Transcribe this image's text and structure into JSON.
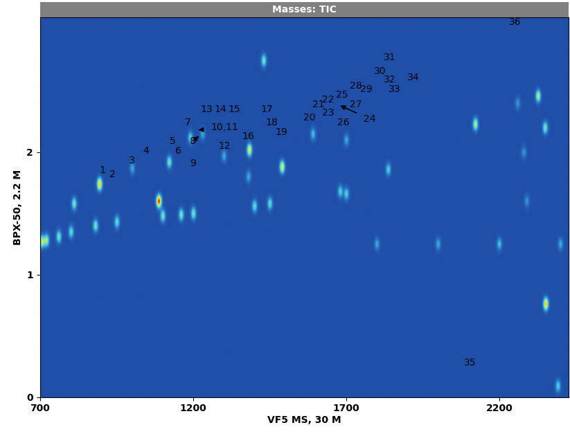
{
  "chart_data": {
    "type": "heatmap",
    "title": "Masses: TIC",
    "x_label": "VF5 MS, 30 M",
    "y_label": "BPX-50, 2.2 M",
    "xlim": [
      700,
      2425
    ],
    "ylim": [
      0,
      3.1
    ],
    "xticks": [
      700,
      1200,
      1700,
      2200
    ],
    "yticks": [
      0,
      1,
      2
    ],
    "grid": false,
    "peaks": {
      "x": [
        1087,
        893,
        1383,
        1490,
        1430,
        2122,
        2327,
        2350,
        2352,
        2392,
        1837,
        1680,
        1121,
        1000,
        810,
        1300,
        1190,
        1230,
        1380,
        1591,
        1700,
        2260,
        2280,
        2290,
        705,
        720,
        760,
        800,
        880,
        950,
        1100,
        1160,
        1200,
        1400,
        1450,
        1700,
        1800,
        2000,
        2200,
        2400
      ],
      "y": [
        1.6,
        1.74,
        2.02,
        1.88,
        2.75,
        2.23,
        2.46,
        2.2,
        0.76,
        0.09,
        1.86,
        1.68,
        1.92,
        1.87,
        1.58,
        1.97,
        2.12,
        2.15,
        1.8,
        2.15,
        2.1,
        2.4,
        2.0,
        1.6,
        1.27,
        1.28,
        1.31,
        1.35,
        1.4,
        1.43,
        1.48,
        1.49,
        1.5,
        1.56,
        1.58,
        1.66,
        1.25,
        1.25,
        1.25,
        1.25
      ],
      "intensity": [
        1.0,
        0.8,
        0.7,
        0.7,
        0.5,
        0.6,
        0.6,
        0.5,
        0.8,
        0.4,
        0.4,
        0.4,
        0.5,
        0.3,
        0.5,
        0.3,
        0.4,
        0.3,
        0.3,
        0.35,
        0.3,
        0.25,
        0.25,
        0.25,
        0.6,
        0.55,
        0.5,
        0.45,
        0.5,
        0.45,
        0.5,
        0.5,
        0.5,
        0.45,
        0.45,
        0.4,
        0.3,
        0.3,
        0.35,
        0.3
      ]
    },
    "annotations": [
      {
        "text": "1",
        "x": 904,
        "y": 1.85
      },
      {
        "text": "2",
        "x": 937,
        "y": 1.82
      },
      {
        "text": "3",
        "x": 1000,
        "y": 1.93
      },
      {
        "text": "4",
        "x": 1047,
        "y": 2.01
      },
      {
        "text": "5",
        "x": 1134,
        "y": 2.09
      },
      {
        "text": "6",
        "x": 1152,
        "y": 2.01
      },
      {
        "text": "7",
        "x": 1184,
        "y": 2.24
      },
      {
        "text": "8",
        "x": 1199,
        "y": 2.09,
        "arrow_to": [
          1219,
          2.13
        ]
      },
      {
        "text": "9",
        "x": 1199,
        "y": 1.91
      },
      {
        "text": "10,11",
        "x": 1304,
        "y": 2.2,
        "arrow_to": [
          1217,
          2.18
        ]
      },
      {
        "text": "12",
        "x": 1304,
        "y": 2.05
      },
      {
        "text": "13",
        "x": 1244,
        "y": 2.35
      },
      {
        "text": "14",
        "x": 1289,
        "y": 2.35
      },
      {
        "text": "15",
        "x": 1334,
        "y": 2.35
      },
      {
        "text": "16",
        "x": 1381,
        "y": 2.13
      },
      {
        "text": "17",
        "x": 1441,
        "y": 2.35
      },
      {
        "text": "18",
        "x": 1457,
        "y": 2.24
      },
      {
        "text": "19",
        "x": 1488,
        "y": 2.16
      },
      {
        "text": "20",
        "x": 1580,
        "y": 2.28
      },
      {
        "text": "21",
        "x": 1609,
        "y": 2.39
      },
      {
        "text": "22",
        "x": 1642,
        "y": 2.43
      },
      {
        "text": "23",
        "x": 1642,
        "y": 2.32
      },
      {
        "text": "24",
        "x": 1777,
        "y": 2.27,
        "arrow_to": [
          1680,
          2.38
        ]
      },
      {
        "text": "25",
        "x": 1687,
        "y": 2.47
      },
      {
        "text": "26",
        "x": 1690,
        "y": 2.24
      },
      {
        "text": "27",
        "x": 1732,
        "y": 2.39
      },
      {
        "text": "28",
        "x": 1732,
        "y": 2.54
      },
      {
        "text": "29",
        "x": 1766,
        "y": 2.51
      },
      {
        "text": "30",
        "x": 1810,
        "y": 2.66
      },
      {
        "text": "31",
        "x": 1842,
        "y": 2.77
      },
      {
        "text": "32",
        "x": 1842,
        "y": 2.59
      },
      {
        "text": "33",
        "x": 1857,
        "y": 2.51
      },
      {
        "text": "34",
        "x": 1918,
        "y": 2.61
      },
      {
        "text": "35",
        "x": 2104,
        "y": 0.28
      },
      {
        "text": "36",
        "x": 2251,
        "y": 3.06
      }
    ]
  }
}
